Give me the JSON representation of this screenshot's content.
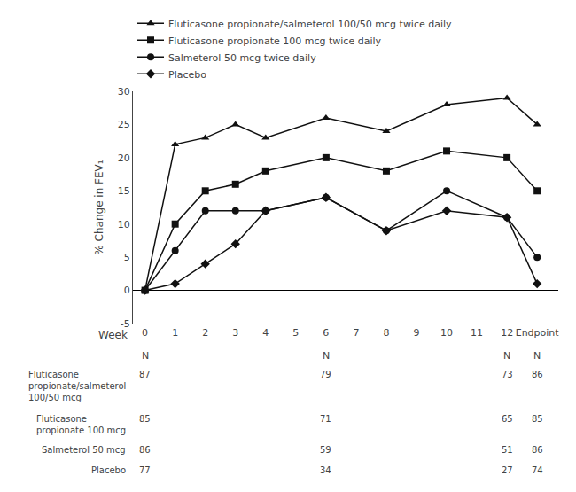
{
  "chart_data": {
    "type": "line",
    "color": "#111111",
    "ylabel": "% Change in FEV₁",
    "x": [
      0,
      1,
      2,
      3,
      4,
      6,
      8,
      10,
      12,
      13
    ],
    "series": [
      {
        "name": "Fluticasone propionate/salmeterol 100/50 mcg twice daily",
        "marker": "triangle",
        "values": [
          0,
          22,
          23,
          25,
          23,
          26,
          24,
          28,
          29,
          25
        ]
      },
      {
        "name": "Fluticasone propionate 100 mcg twice daily",
        "marker": "square",
        "values": [
          0,
          10,
          15,
          16,
          18,
          20,
          18,
          21,
          20,
          15
        ]
      },
      {
        "name": "Salmeterol 50 mcg twice daily",
        "marker": "circle",
        "values": [
          0,
          6,
          12,
          12,
          12,
          14,
          9,
          15,
          11,
          5
        ]
      },
      {
        "name": "Placebo",
        "marker": "diamond",
        "values": [
          0,
          1,
          4,
          7,
          12,
          14,
          9,
          12,
          11,
          1
        ]
      }
    ],
    "xlim": [
      -0.4,
      13.7
    ],
    "xticks": [
      0,
      1,
      2,
      3,
      4,
      5,
      6,
      7,
      8,
      9,
      10,
      11,
      12,
      {
        "value": 13,
        "label": "Endpoint"
      }
    ],
    "ylim": [
      -5,
      30
    ],
    "yticks": [
      -5,
      0,
      5,
      10,
      15,
      20,
      25,
      30
    ],
    "grid": false,
    "legend": "upper left",
    "annotations": [
      {
        "text": "Week"
      }
    ],
    "table": {
      "header": "N",
      "x": [
        0,
        6,
        12,
        13
      ],
      "rows": [
        {
          "label": "Fluticasone\npropionate/salmeterol\n100/50 mcg",
          "values": [
            87,
            79,
            73,
            86
          ]
        },
        {
          "label": "Fluticasone\npropionate 100 mcg",
          "values": [
            85,
            71,
            65,
            85
          ]
        },
        {
          "label": "Salmeterol 50 mcg",
          "values": [
            86,
            59,
            51,
            86
          ]
        },
        {
          "label": "Placebo",
          "values": [
            77,
            34,
            27,
            74
          ]
        }
      ]
    }
  }
}
